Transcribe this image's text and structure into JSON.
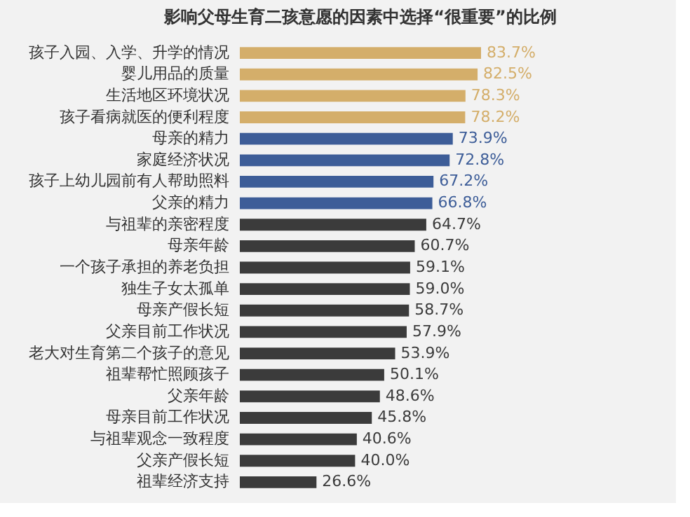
{
  "chart_data": {
    "type": "bar",
    "orientation": "horizontal",
    "title": "影响父母生育二孩意愿的因素中选择“很重要”的比例",
    "categories": [
      "孩子入园、入学、升学的情况",
      "婴儿用品的质量",
      "生活地区环境状况",
      "孩子看病就医的便利程度",
      "母亲的精力",
      "家庭经济状况",
      "孩子上幼儿园前有人帮助照料",
      "父亲的精力",
      "与祖辈的亲密程度",
      "母亲年龄",
      "一个孩子承担的养老负担",
      "独生子女太孤单",
      "母亲产假长短",
      "父亲目前工作状况",
      "老大对生育第二个孩子的意见",
      "祖辈帮忙照顾孩子",
      "父亲年龄",
      "母亲目前工作状况",
      "与祖辈观念一致程度",
      "父亲产假长短",
      "祖辈经济支持"
    ],
    "values": [
      83.7,
      82.5,
      78.3,
      78.2,
      73.9,
      72.8,
      67.2,
      66.8,
      64.7,
      60.7,
      59.1,
      59.0,
      58.7,
      57.9,
      53.9,
      50.1,
      48.6,
      45.8,
      40.6,
      40.0,
      26.6
    ],
    "value_labels": [
      "83.7%",
      "82.5%",
      "78.3%",
      "78.2%",
      "73.9%",
      "72.8%",
      "67.2%",
      "66.8%",
      "64.7%",
      "60.7%",
      "59.1%",
      "59.0%",
      "58.7%",
      "57.9%",
      "53.9%",
      "50.1%",
      "48.6%",
      "45.8%",
      "40.6%",
      "40.0%",
      "26.6%"
    ],
    "colors": [
      "#d4ae6a",
      "#d4ae6a",
      "#d4ae6a",
      "#d4ae6a",
      "#3d5d98",
      "#3d5d98",
      "#3d5d98",
      "#3d5d98",
      "#3b3b3b",
      "#3b3b3b",
      "#3b3b3b",
      "#3b3b3b",
      "#3b3b3b",
      "#3b3b3b",
      "#3b3b3b",
      "#3b3b3b",
      "#3b3b3b",
      "#3b3b3b",
      "#3b3b3b",
      "#3b3b3b",
      "#3b3b3b"
    ],
    "tick_labels": "y"
  }
}
